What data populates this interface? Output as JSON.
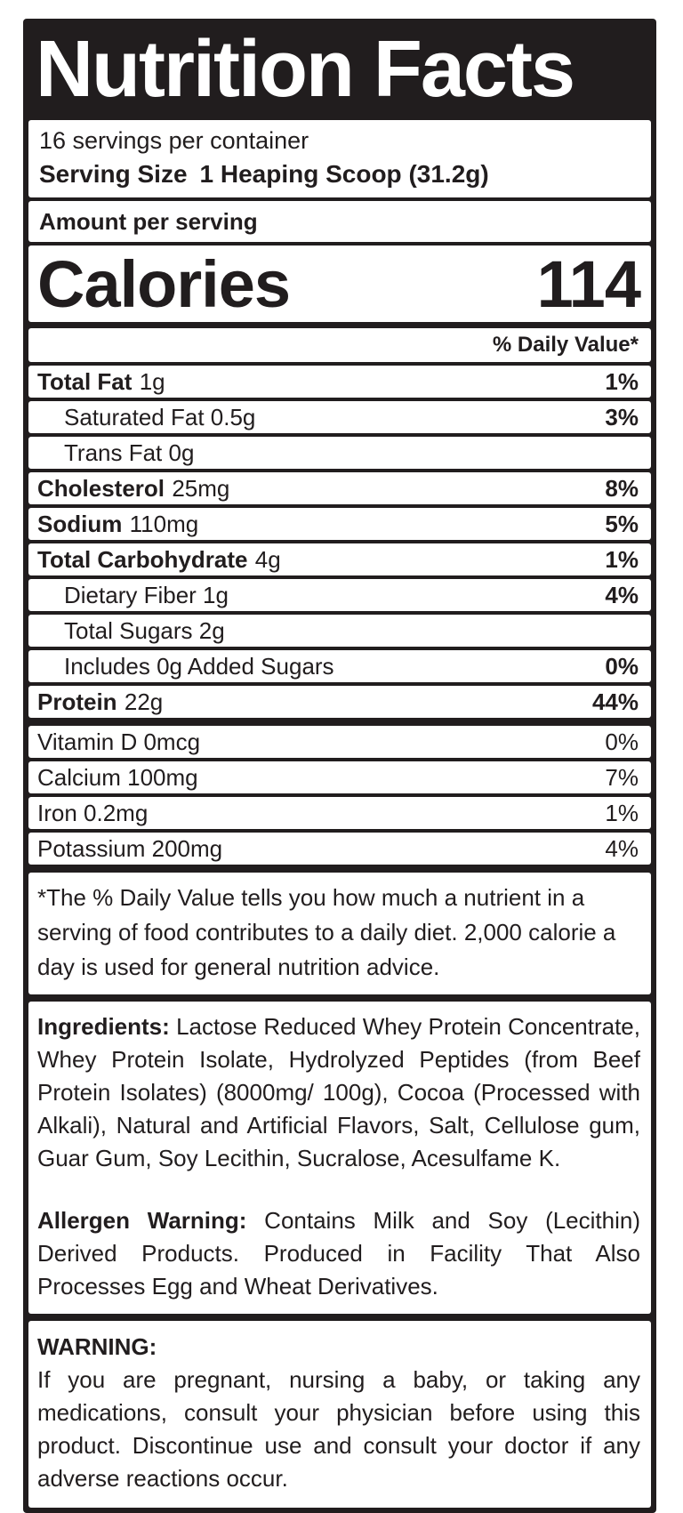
{
  "title": "Nutrition Facts",
  "servings": {
    "per_container": "16 servings per container",
    "serving_size_label": "Serving Size",
    "serving_size_value": "1 Heaping Scoop (31.2g)"
  },
  "amount_per_serving": "Amount per serving",
  "calories": {
    "label": "Calories",
    "value": "114"
  },
  "daily_value_header": "% Daily Value*",
  "nutrients": [
    {
      "name": "Total Fat",
      "amount": "1g",
      "dv": "1%",
      "style": "main"
    },
    {
      "name": "Saturated Fat 0.5g",
      "amount": "",
      "dv": "3%",
      "style": "sub"
    },
    {
      "name": "Trans Fat 0g",
      "amount": "",
      "dv": "",
      "style": "sub"
    },
    {
      "name": "Cholesterol",
      "amount": "25mg",
      "dv": "8%",
      "style": "main"
    },
    {
      "name": "Sodium",
      "amount": "110mg",
      "dv": "5%",
      "style": "main"
    },
    {
      "name": "Total Carbohydrate",
      "amount": "4g",
      "dv": "1%",
      "style": "main"
    },
    {
      "name": "Dietary Fiber 1g",
      "amount": "",
      "dv": "4%",
      "style": "sub"
    },
    {
      "name": "Total Sugars 2g",
      "amount": "",
      "dv": "",
      "style": "sub"
    },
    {
      "name": "Includes 0g Added Sugars",
      "amount": "",
      "dv": "0%",
      "style": "sub"
    },
    {
      "name": "Protein",
      "amount": "22g",
      "dv": "44%",
      "style": "main"
    },
    {
      "name": "Vitamin D 0mcg",
      "amount": "",
      "dv": "0%",
      "style": "vitamin",
      "thick": true
    },
    {
      "name": "Calcium 100mg",
      "amount": "",
      "dv": "7%",
      "style": "vitamin"
    },
    {
      "name": "Iron 0.2mg",
      "amount": "",
      "dv": "1%",
      "style": "vitamin"
    },
    {
      "name": "Potassium 200mg",
      "amount": "",
      "dv": "4%",
      "style": "vitamin"
    }
  ],
  "footnote": "*The % Daily Value tells you how much a nutrient in a serving of food contributes to a daily diet. 2,000 calorie a day is used for general nutrition advice.",
  "ingredients": {
    "label": "Ingredients:",
    "text": "Lactose Reduced Whey Protein Concentrate, Whey Protein Isolate, Hydrolyzed Peptides (from Beef Protein Isolates) (8000mg/ 100g), Cocoa (Processed with Alkali), Natural and Artificial Flavors, Salt, Cellulose gum, Guar Gum, Soy Lecithin, Sucralose, Acesulfame K."
  },
  "allergen": {
    "label": "Allergen Warning:",
    "text": "Contains Milk and Soy (Lecithin) Derived Products. Produced in Facility That Also Processes Egg and Wheat Derivatives."
  },
  "warning": {
    "heading": "WARNING:",
    "text": "If you are pregnant, nursing a baby, or taking any medications, consult your physician before using this product. Discontinue use and consult your doctor if any adverse reactions occur."
  },
  "colors": {
    "frame_black": "#211d1e",
    "box_white": "#ffffff"
  }
}
